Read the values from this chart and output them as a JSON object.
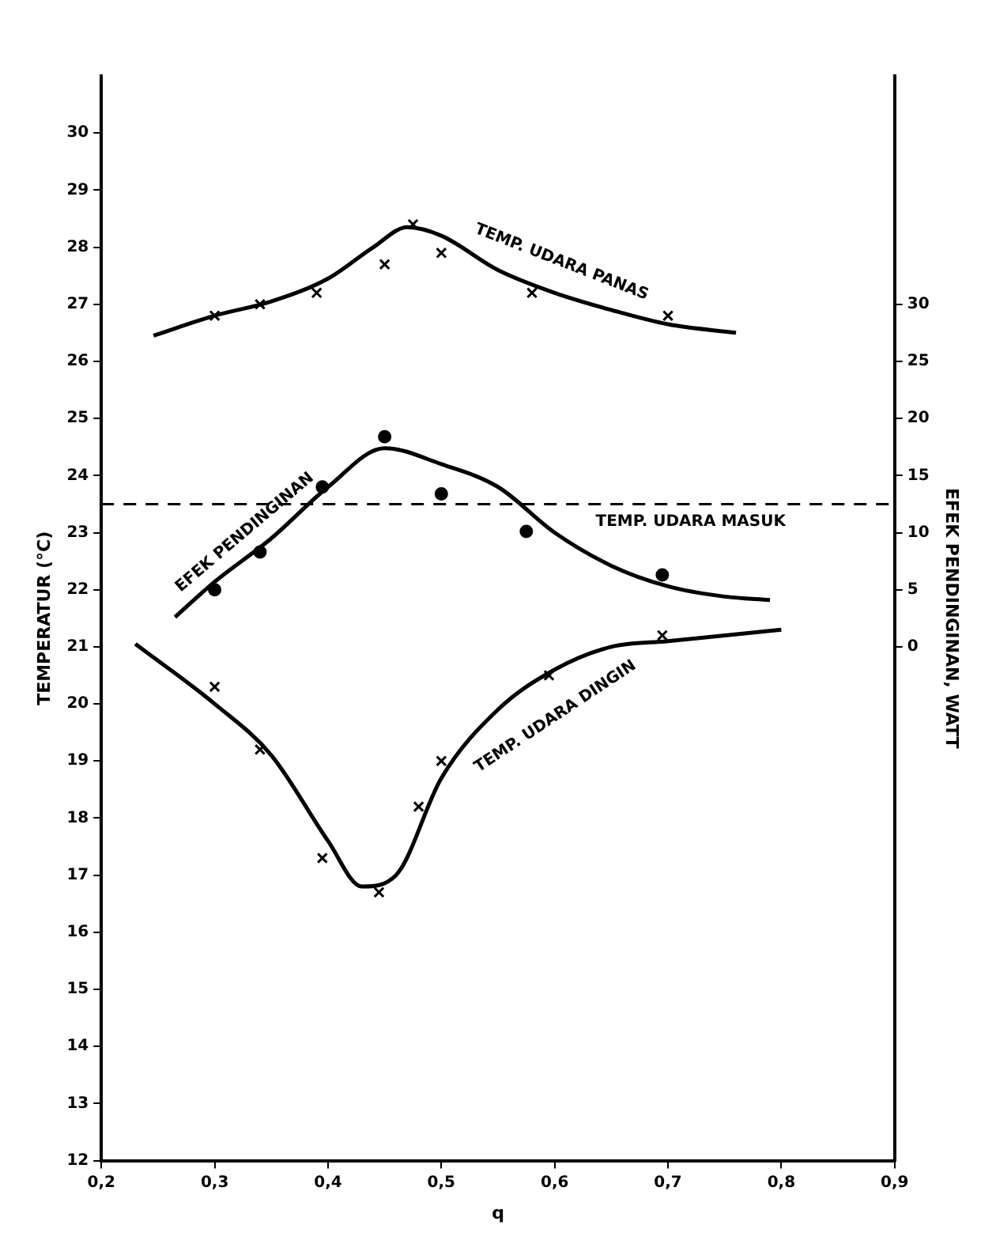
{
  "chart_data": {
    "type": "line",
    "xlabel": "q",
    "ylabel": "TEMPERATUR (°C)",
    "y2label": "EFEK PENDINGINAN, WATT",
    "xlim": [
      0.2,
      0.9
    ],
    "xticks": [
      {
        "value": 0.2,
        "label": "0,2"
      },
      {
        "value": 0.3,
        "label": "0,3"
      },
      {
        "value": 0.4,
        "label": "0,4"
      },
      {
        "value": 0.5,
        "label": "0,5"
      },
      {
        "value": 0.6,
        "label": "0,6"
      },
      {
        "value": 0.7,
        "label": "0,7"
      },
      {
        "value": 0.8,
        "label": "0,8"
      },
      {
        "value": 0.9,
        "label": "0,9"
      }
    ],
    "ylim": [
      12,
      31
    ],
    "yticks": [
      12,
      13,
      14,
      15,
      16,
      17,
      18,
      19,
      20,
      21,
      22,
      23,
      24,
      25,
      26,
      27,
      28,
      29,
      30
    ],
    "y2lim": [
      -45,
      50
    ],
    "y2ticks": [
      0,
      5,
      10,
      15,
      20,
      25,
      30
    ],
    "grid": false,
    "legend": false,
    "series": [
      {
        "name": "TEMP. UDARA PANAS",
        "color": "#000000",
        "marker": "none",
        "x": [
          0.246,
          0.3,
          0.35,
          0.4,
          0.44,
          0.47,
          0.5,
          0.55,
          0.6,
          0.65,
          0.7,
          0.76
        ],
        "values": [
          26.45,
          26.8,
          27.05,
          27.45,
          28.0,
          28.35,
          28.2,
          27.6,
          27.2,
          26.9,
          26.65,
          26.5
        ]
      },
      {
        "type": "scatter",
        "color": "#000000",
        "marker": "cross",
        "x": [
          0.3,
          0.34,
          0.39,
          0.45,
          0.475,
          0.5,
          0.58,
          0.7
        ],
        "values": [
          26.8,
          27.0,
          27.2,
          27.7,
          28.4,
          27.9,
          27.2,
          26.8
        ]
      },
      {
        "name": "EFEK PENDINGINAN",
        "axis": "y2",
        "color": "#000000",
        "marker": "none",
        "x": [
          0.265,
          0.3,
          0.35,
          0.4,
          0.45,
          0.5,
          0.55,
          0.6,
          0.65,
          0.7,
          0.75,
          0.79
        ],
        "values": [
          2.6,
          5.7,
          9.5,
          14.0,
          17.4,
          16.0,
          14.0,
          10.0,
          7.1,
          5.3,
          4.4,
          4.1
        ]
      },
      {
        "type": "scatter",
        "axis": "y2",
        "color": "#000000",
        "marker": "circle",
        "x": [
          0.3,
          0.34,
          0.395,
          0.45,
          0.5,
          0.575,
          0.695
        ],
        "values": [
          5.0,
          8.3,
          14.0,
          18.4,
          13.4,
          10.1,
          6.3
        ]
      },
      {
        "name": "TEMP. UDARA DINGIN",
        "color": "#000000",
        "marker": "none",
        "x": [
          0.23,
          0.3,
          0.35,
          0.4,
          0.43,
          0.46,
          0.5,
          0.55,
          0.6,
          0.65,
          0.7,
          0.8
        ],
        "values": [
          21.05,
          20.0,
          19.1,
          17.6,
          16.8,
          17.0,
          18.7,
          19.9,
          20.6,
          21.0,
          21.1,
          21.3
        ]
      },
      {
        "type": "scatter",
        "color": "#000000",
        "marker": "cross",
        "x": [
          0.3,
          0.34,
          0.395,
          0.445,
          0.48,
          0.5,
          0.595,
          0.695
        ],
        "values": [
          20.3,
          19.2,
          17.3,
          16.7,
          18.2,
          19.0,
          20.5,
          21.2
        ]
      }
    ],
    "ref_lines": [
      {
        "axis": "y",
        "value": 23.5,
        "label": "TEMP. UDARA MASUK",
        "color": "#000000",
        "line_style": "dashed"
      }
    ]
  }
}
